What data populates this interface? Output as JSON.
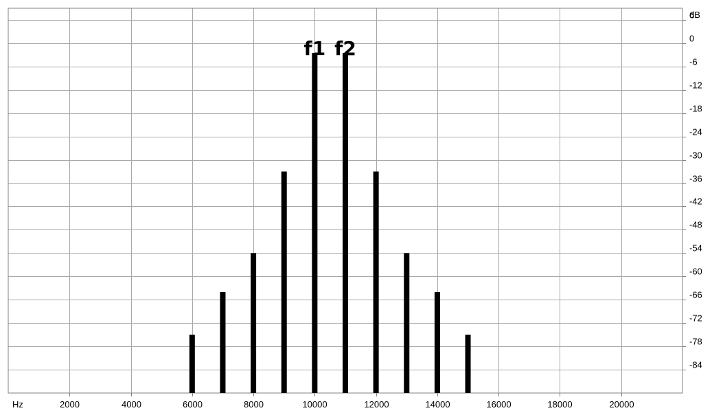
{
  "chart_data": {
    "type": "bar",
    "title": "",
    "x_unit": "Hz",
    "y_unit": "dB",
    "xlim": [
      0,
      22000
    ],
    "ylim": [
      -90,
      9
    ],
    "x_ticks": [
      2000,
      4000,
      6000,
      8000,
      10000,
      12000,
      14000,
      16000,
      18000,
      20000
    ],
    "x_tick_labels": [
      "2000",
      "4000",
      "6000",
      "8000",
      "10000",
      "12000",
      "14000",
      "16000",
      "18000",
      "20000"
    ],
    "y_ticks": [
      6,
      0,
      -6,
      -12,
      -18,
      -24,
      -30,
      -36,
      -42,
      -48,
      -54,
      -60,
      -66,
      -72,
      -78,
      -84
    ],
    "y_tick_labels": [
      "6",
      "0",
      "-6",
      "-12",
      "-18",
      "-24",
      "-30",
      "-36",
      "-42",
      "-48",
      "-54",
      "-60",
      "-66",
      "-72",
      "-78",
      "-84"
    ],
    "grid": true,
    "x": [
      6000,
      7000,
      8000,
      9000,
      10000,
      11000,
      12000,
      13000,
      14000,
      15000
    ],
    "values": [
      -75,
      -64,
      -54,
      -33,
      -2.5,
      -2.5,
      -33,
      -54,
      -64,
      -75
    ],
    "annotations": [
      {
        "text": "f1",
        "x": 10000
      },
      {
        "text": "f2",
        "x": 11000
      }
    ]
  }
}
